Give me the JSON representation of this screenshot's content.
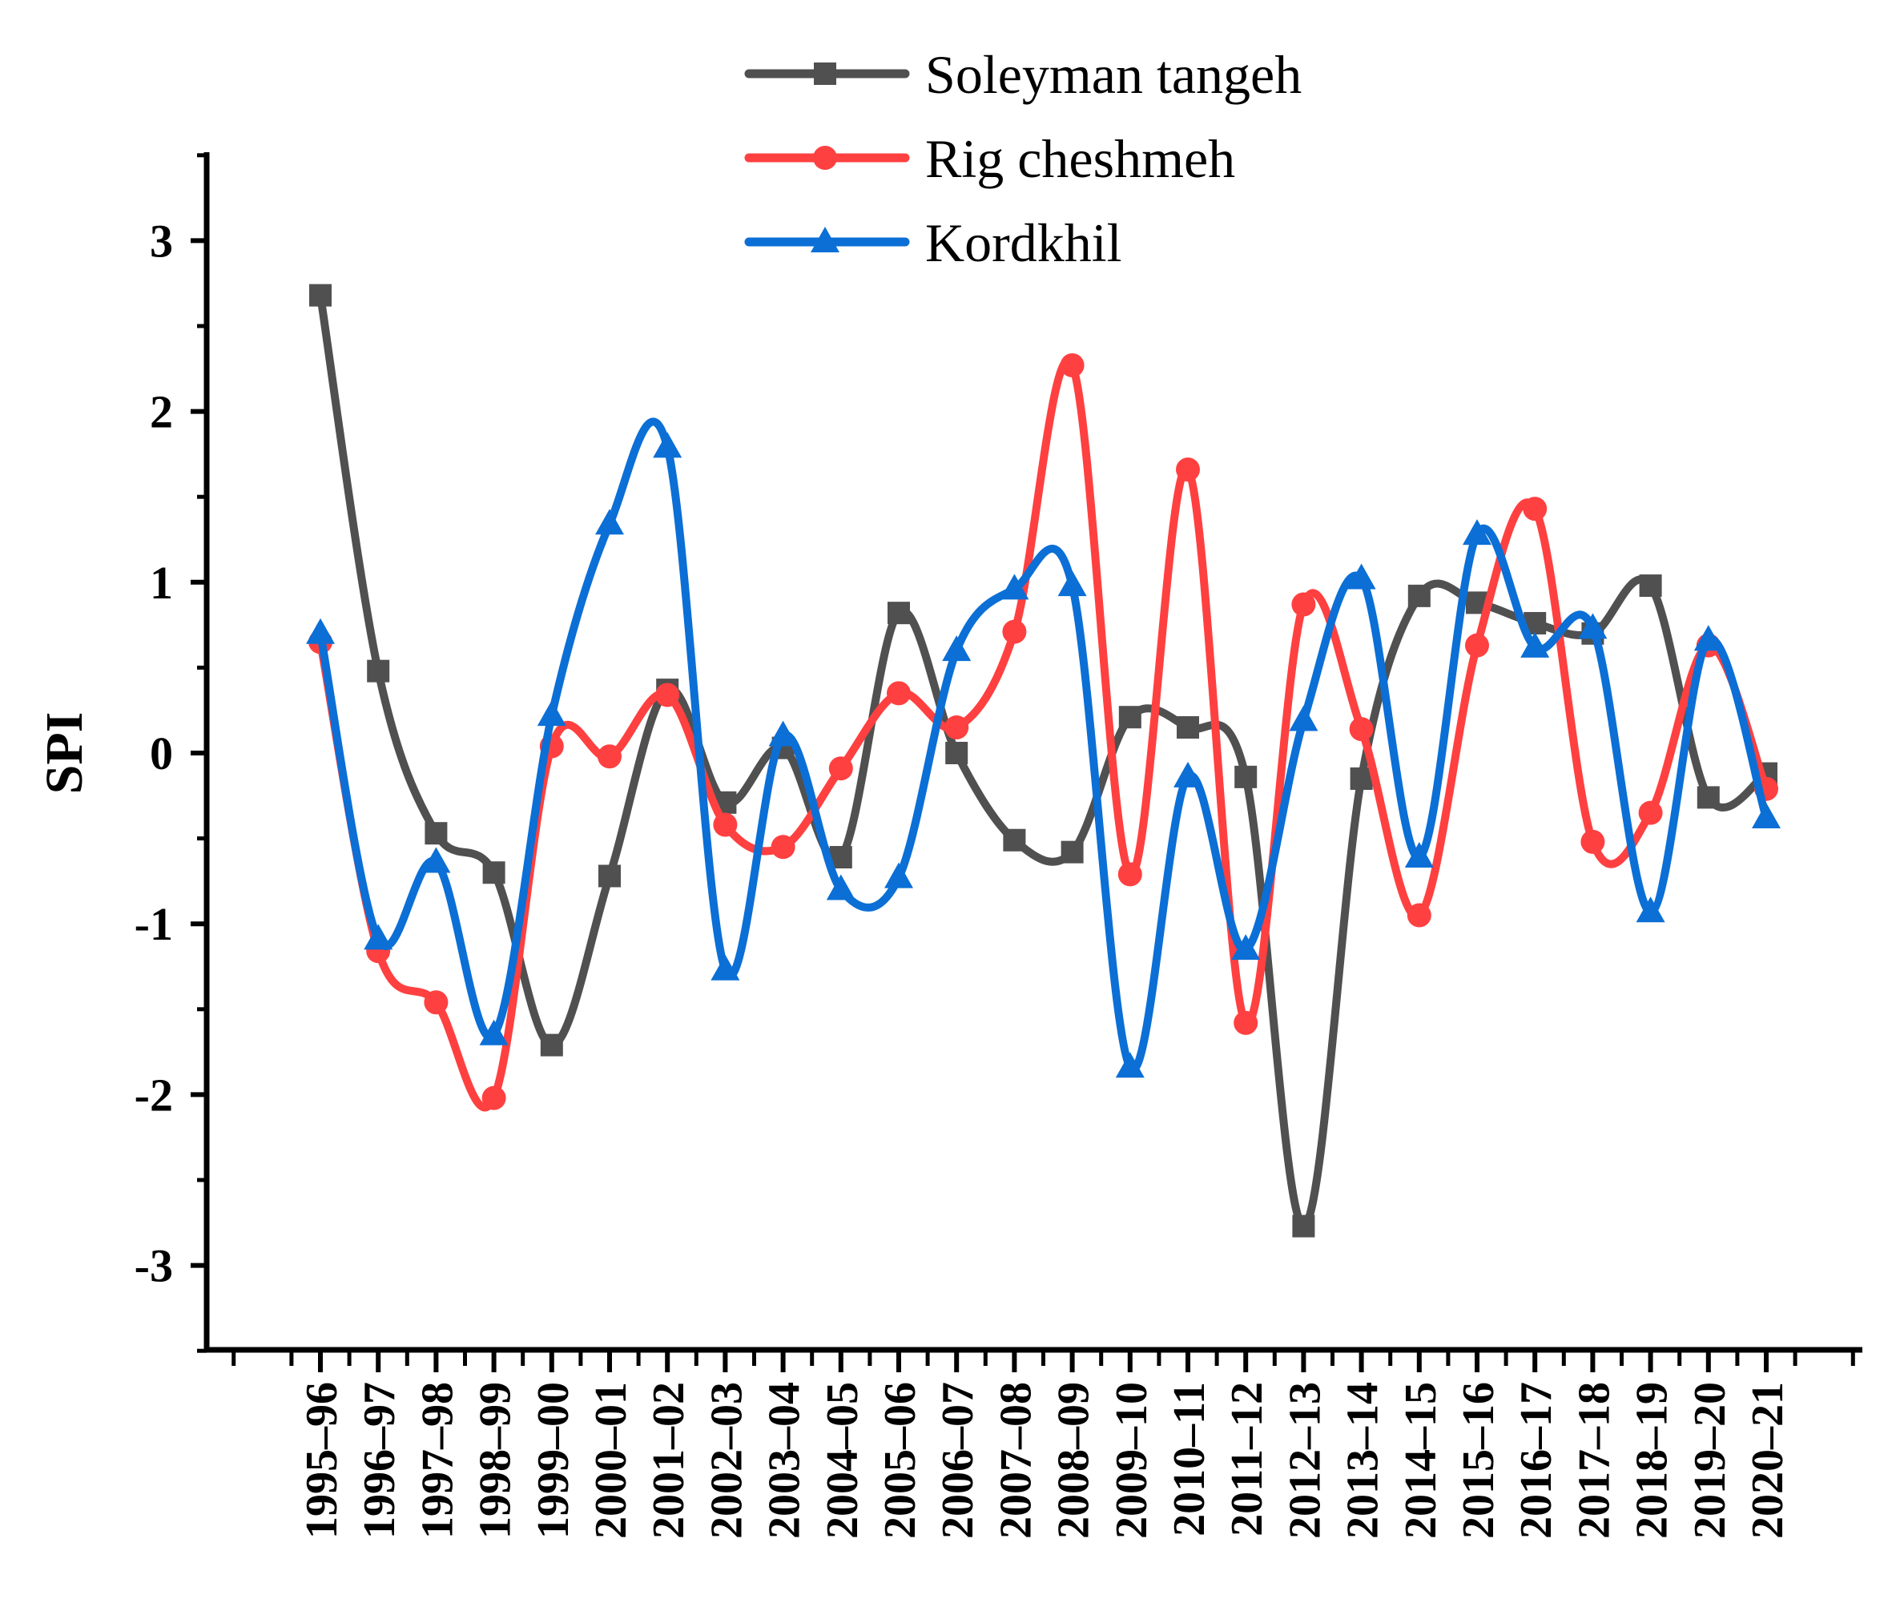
{
  "chart_data": {
    "type": "line",
    "title": "",
    "xlabel": "",
    "ylabel": "SPI",
    "ylim": [
      -3.5,
      3.5
    ],
    "y_ticks": [
      "3",
      "2",
      "1",
      "0",
      "-1",
      "-2",
      "-3"
    ],
    "y_tick_values": [
      3,
      2,
      1,
      0,
      -1,
      -2,
      -3
    ],
    "legend_position": "top-center",
    "categories": [
      "1995–96",
      "1996–97",
      "1997–98",
      "1998–99",
      "1999–00",
      "2000–01",
      "2001–02",
      "2002–03",
      "2003–04",
      "2004–05",
      "2005–06",
      "2006–07",
      "2007–08",
      "2008–09",
      "2009–10",
      "2010–11",
      "2011–12",
      "2012–13",
      "2013–14",
      "2014–15",
      "2015–16",
      "2016–17",
      "2017–18",
      "2018–19",
      "2019–20",
      "2020–21"
    ],
    "series": [
      {
        "name": "Soleyman tangeh",
        "color": "#505050",
        "marker": "square",
        "values": [
          2.68,
          0.48,
          -0.47,
          -0.7,
          -1.71,
          -0.72,
          0.37,
          -0.29,
          0.03,
          -0.61,
          0.82,
          0.0,
          -0.51,
          -0.58,
          0.21,
          0.15,
          -0.14,
          -2.77,
          -0.15,
          0.92,
          0.88,
          0.76,
          0.7,
          0.98,
          -0.26,
          -0.12
        ]
      },
      {
        "name": "Rig cheshmeh",
        "color": "#ff4040",
        "marker": "circle",
        "values": [
          0.65,
          -1.16,
          -1.46,
          -2.02,
          0.04,
          -0.02,
          0.34,
          -0.42,
          -0.55,
          -0.09,
          0.35,
          0.15,
          0.71,
          2.27,
          -0.71,
          1.66,
          -1.58,
          0.87,
          0.14,
          -0.95,
          0.63,
          1.43,
          -0.52,
          -0.35,
          0.63,
          -0.21
        ]
      },
      {
        "name": "Kordkhil",
        "color": "#0b6fd6",
        "marker": "triangle",
        "values": [
          0.7,
          -1.09,
          -0.64,
          -1.65,
          0.22,
          1.34,
          1.79,
          -1.27,
          0.1,
          -0.8,
          -0.73,
          0.6,
          0.96,
          0.98,
          -1.84,
          -0.14,
          -1.15,
          0.19,
          1.02,
          -0.61,
          1.28,
          0.62,
          0.73,
          -0.93,
          0.66,
          -0.38
        ]
      }
    ]
  }
}
